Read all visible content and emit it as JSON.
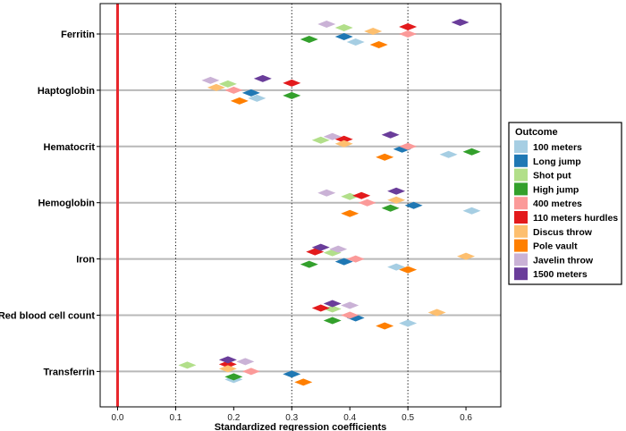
{
  "chart_data": {
    "type": "scatter",
    "xlabel": "Standardized regression coefficients",
    "xlim": [
      -0.03,
      0.66
    ],
    "xticks": [
      "0.0",
      "0.1",
      "0.2",
      "0.3",
      "0.4",
      "0.5",
      "0.6"
    ],
    "xtick_values": [
      0.0,
      0.1,
      0.2,
      0.3,
      0.4,
      0.5,
      0.6
    ],
    "reference_line": 0.0,
    "dotted_lines": [
      0.1,
      0.3,
      0.5
    ],
    "categories": [
      "Ferritin",
      "Haptoglobin",
      "Hematocrit",
      "Hemoglobin",
      "Iron",
      "Red blood cell count",
      "Transferrin"
    ],
    "legend": {
      "title": "Outcome",
      "placement": "right"
    },
    "series": [
      {
        "name": "100 meters",
        "color": "#a6cee3",
        "values": [
          0.41,
          0.24,
          0.57,
          0.61,
          0.48,
          0.5,
          0.2
        ]
      },
      {
        "name": "Long jump",
        "color": "#1f78b4",
        "values": [
          0.39,
          0.23,
          0.49,
          0.51,
          0.39,
          0.41,
          0.3
        ]
      },
      {
        "name": "Shot put",
        "color": "#b2df8a",
        "values": [
          0.39,
          0.19,
          0.35,
          0.4,
          0.37,
          0.37,
          0.12
        ]
      },
      {
        "name": "High jump",
        "color": "#33a02c",
        "values": [
          0.33,
          0.3,
          0.61,
          0.47,
          0.33,
          0.37,
          0.2
        ]
      },
      {
        "name": "400 metres",
        "color": "#fb9a99",
        "values": [
          0.5,
          0.2,
          0.5,
          0.43,
          0.41,
          0.4,
          0.23
        ]
      },
      {
        "name": "110 meters hurdles",
        "color": "#e31a1c",
        "values": [
          0.5,
          0.3,
          0.39,
          0.42,
          0.34,
          0.35,
          0.19
        ]
      },
      {
        "name": "Discus throw",
        "color": "#fdbf6f",
        "values": [
          0.44,
          0.17,
          0.39,
          0.48,
          0.6,
          0.55,
          0.19
        ]
      },
      {
        "name": "Pole vault",
        "color": "#ff7f00",
        "values": [
          0.45,
          0.21,
          0.46,
          0.4,
          0.5,
          0.46,
          0.32
        ]
      },
      {
        "name": "Javelin throw",
        "color": "#cab2d6",
        "values": [
          0.36,
          0.16,
          0.37,
          0.36,
          0.38,
          0.4,
          0.22
        ]
      },
      {
        "name": "1500 meters",
        "color": "#6a3d9a",
        "values": [
          0.59,
          0.25,
          0.47,
          0.48,
          0.35,
          0.37,
          0.19
        ]
      }
    ]
  }
}
